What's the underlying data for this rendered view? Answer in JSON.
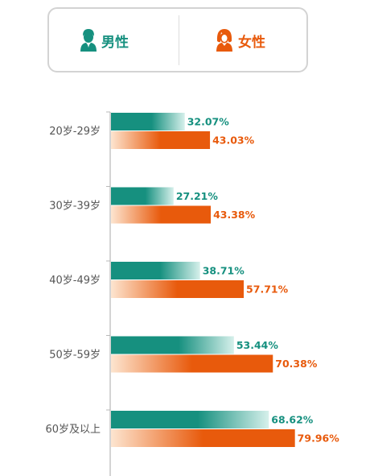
{
  "legend": {
    "male_label": "男性",
    "female_label": "女性",
    "male_icon": "male-avatar-icon",
    "female_icon": "female-avatar-icon"
  },
  "colors": {
    "male": "#16907f",
    "male_light": "#d6f0eb",
    "female": "#e85a0c",
    "female_light": "#fde5d0"
  },
  "chart_data": {
    "type": "bar",
    "orientation": "horizontal",
    "categories": [
      "20岁-29岁",
      "30岁-39岁",
      "40岁-49岁",
      "50岁-59岁",
      "60岁及以上"
    ],
    "series": [
      {
        "name": "男性",
        "values": [
          32.07,
          27.21,
          38.71,
          53.44,
          68.62
        ],
        "labels": [
          "32.07%",
          "27.21%",
          "38.71%",
          "53.44%",
          "68.62%"
        ]
      },
      {
        "name": "女性",
        "values": [
          43.03,
          43.38,
          57.71,
          70.38,
          79.96
        ],
        "labels": [
          "43.03%",
          "43.38%",
          "57.71%",
          "70.38%",
          "79.96%"
        ]
      }
    ],
    "xlim": [
      0,
      100
    ],
    "legend": "top",
    "grid": false
  }
}
